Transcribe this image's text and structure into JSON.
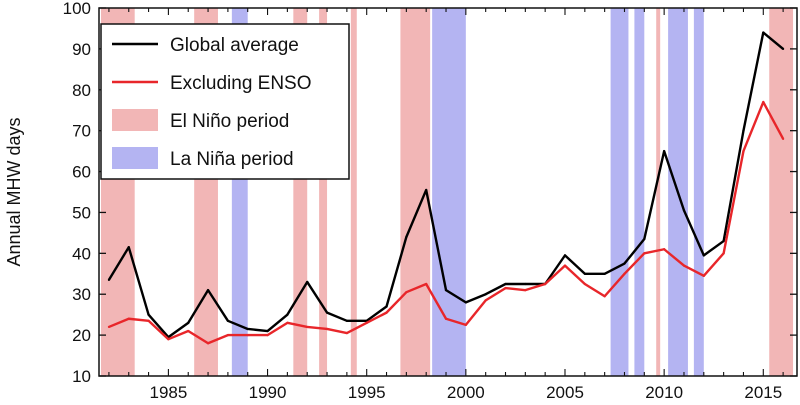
{
  "chart_data": {
    "type": "line",
    "title": "",
    "xlabel": "",
    "ylabel": "Annual MHW days",
    "xlim": [
      1981.5,
      2016.7
    ],
    "ylim": [
      10,
      100
    ],
    "xticks": [
      1985,
      1990,
      1995,
      2000,
      2005,
      2010,
      2015
    ],
    "yticks": [
      10,
      20,
      30,
      40,
      50,
      60,
      70,
      80,
      90,
      100
    ],
    "grid": false,
    "legend_position": "top-left",
    "x": [
      1982,
      1983,
      1984,
      1985,
      1986,
      1987,
      1988,
      1989,
      1990,
      1991,
      1992,
      1993,
      1994,
      1995,
      1996,
      1997,
      1998,
      1999,
      2000,
      2001,
      2002,
      2003,
      2004,
      2005,
      2006,
      2007,
      2008,
      2009,
      2010,
      2011,
      2012,
      2013,
      2014,
      2015,
      2016
    ],
    "series": [
      {
        "name": "Global average",
        "color": "#000000",
        "values": [
          33.5,
          41.5,
          25,
          19.5,
          23,
          31,
          23.5,
          21.5,
          21,
          25,
          33,
          25.5,
          23.5,
          23.5,
          27,
          44,
          55.5,
          31,
          28,
          30,
          32.5,
          32.5,
          32.5,
          39.5,
          35,
          35,
          37.5,
          43.5,
          65,
          50.5,
          39.5,
          43,
          70,
          94,
          90
        ]
      },
      {
        "name": "Excluding ENSO",
        "color": "#e8262a",
        "values": [
          22,
          24,
          23.5,
          19,
          21,
          18,
          20,
          20,
          20,
          23,
          22,
          21.5,
          20.5,
          23,
          25.5,
          30.5,
          32.5,
          24,
          22.5,
          28.5,
          31.5,
          31,
          32.5,
          37,
          32.5,
          29.5,
          35,
          40,
          41,
          37,
          34.5,
          40,
          65,
          77,
          68
        ]
      }
    ],
    "shaded_periods": [
      {
        "name": "El Niño period",
        "color": "#f2b6b6",
        "ranges": [
          [
            1981.6,
            1983.3
          ],
          [
            1986.3,
            1987.5
          ],
          [
            1991.3,
            1992.0
          ],
          [
            1992.6,
            1993.0
          ],
          [
            1994.2,
            1994.5
          ],
          [
            1996.7,
            1998.2
          ],
          [
            2009.6,
            2009.8
          ],
          [
            2015.3,
            2016.5
          ]
        ]
      },
      {
        "name": "La Niña period",
        "color": "#b4b4f2",
        "ranges": [
          [
            1988.2,
            1989.0
          ],
          [
            1998.3,
            2000.0
          ],
          [
            2007.3,
            2008.2
          ],
          [
            2008.5,
            2009.0
          ],
          [
            2010.2,
            2011.2
          ],
          [
            2011.5,
            2012.0
          ]
        ]
      }
    ],
    "legend": [
      {
        "label": "Global average",
        "kind": "line",
        "color": "#000000"
      },
      {
        "label": "Excluding ENSO",
        "kind": "line",
        "color": "#e8262a"
      },
      {
        "label": "El Niño period",
        "kind": "patch",
        "color": "#f2b6b6"
      },
      {
        "label": "La Niña period",
        "kind": "patch",
        "color": "#b4b4f2"
      }
    ]
  }
}
